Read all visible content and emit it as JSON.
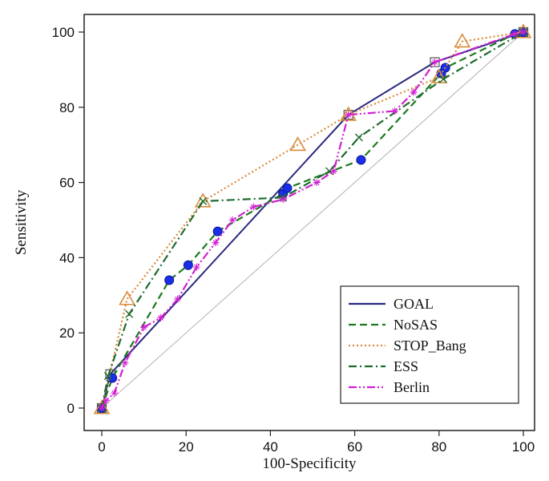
{
  "chart_data": {
    "type": "line",
    "title": "",
    "xlabel": "100-Specificity",
    "ylabel": "Sensitivity",
    "xlim": [
      0,
      100
    ],
    "ylim": [
      0,
      100
    ],
    "x_ticks": [
      0,
      20,
      40,
      60,
      80,
      100
    ],
    "y_ticks": [
      0,
      20,
      40,
      60,
      80,
      100
    ],
    "reference_line": [
      [
        0,
        0
      ],
      [
        100,
        100
      ]
    ],
    "legend_position": "bottom-right",
    "series": [
      {
        "name": "GOAL",
        "color": "#2a2a80",
        "dash": "solid",
        "marker": "square",
        "points": [
          [
            0,
            0
          ],
          [
            2,
            9
          ],
          [
            58.5,
            78
          ],
          [
            79,
            92
          ],
          [
            100,
            100
          ]
        ]
      },
      {
        "name": "NoSAS",
        "color": "#1c7a1c",
        "dash": "dashed",
        "marker": "circle",
        "points": [
          [
            0,
            0
          ],
          [
            2.5,
            8
          ],
          [
            16,
            34
          ],
          [
            20.5,
            38
          ],
          [
            27.5,
            47
          ],
          [
            43,
            57
          ],
          [
            44,
            58.5
          ],
          [
            61.5,
            66
          ],
          [
            80.5,
            89
          ],
          [
            81.5,
            90.5
          ],
          [
            98,
            99.5
          ],
          [
            100,
            100
          ]
        ]
      },
      {
        "name": "STOP_Bang",
        "color": "#d98a3a",
        "dash": "dotted",
        "marker": "triangle",
        "points": [
          [
            0,
            0
          ],
          [
            6,
            29
          ],
          [
            24,
            55
          ],
          [
            46.5,
            70
          ],
          [
            58.5,
            78
          ],
          [
            80,
            88
          ],
          [
            85.5,
            97.5
          ],
          [
            100,
            100
          ]
        ]
      },
      {
        "name": "ESS",
        "color": "#1f6b2e",
        "dash": "dashdot",
        "marker": "x",
        "points": [
          [
            0,
            0
          ],
          [
            1.5,
            8.5
          ],
          [
            6.5,
            25
          ],
          [
            24,
            55
          ],
          [
            43,
            56
          ],
          [
            54,
            63
          ],
          [
            61,
            72
          ],
          [
            81,
            87.5
          ],
          [
            100,
            100
          ]
        ]
      },
      {
        "name": "Berlin",
        "color": "#d21fd2",
        "dash": "dashdotdot",
        "marker": "plus",
        "points": [
          [
            0,
            0
          ],
          [
            1,
            2
          ],
          [
            3,
            4
          ],
          [
            5.5,
            12
          ],
          [
            10,
            21.5
          ],
          [
            14,
            24
          ],
          [
            18,
            29
          ],
          [
            22.5,
            37.5
          ],
          [
            27,
            44
          ],
          [
            31,
            50
          ],
          [
            36,
            53.5
          ],
          [
            43,
            55.5
          ],
          [
            51,
            60
          ],
          [
            55,
            63
          ],
          [
            58.5,
            78
          ],
          [
            69.5,
            79
          ],
          [
            74,
            84
          ],
          [
            79,
            92
          ],
          [
            98,
            99.5
          ],
          [
            100,
            100
          ]
        ]
      }
    ]
  }
}
